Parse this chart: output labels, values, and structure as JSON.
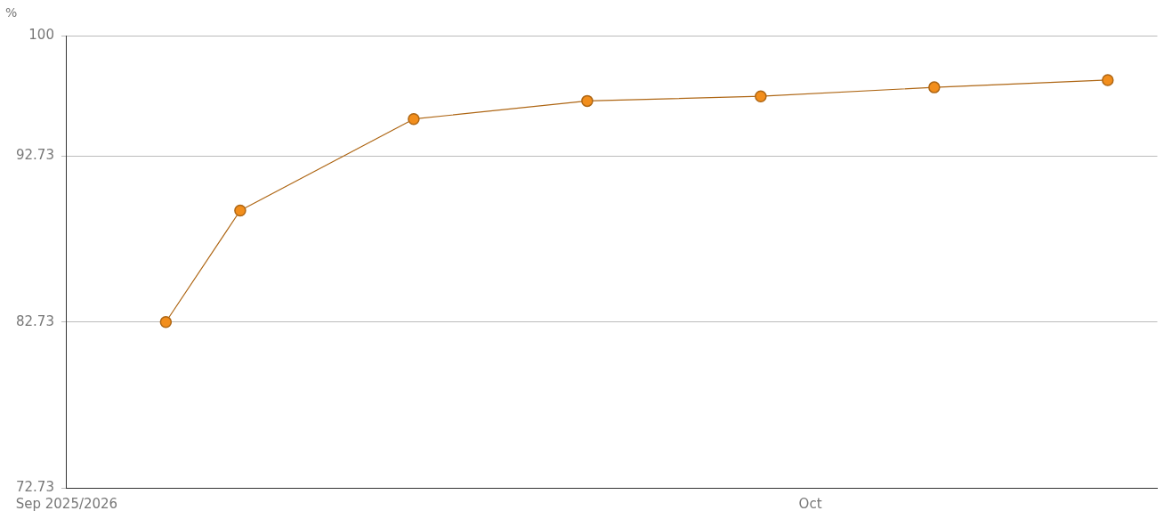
{
  "chart_data": {
    "type": "line",
    "ylabel": "%",
    "x": [
      "--09-05",
      "--09-08",
      "--09-15",
      "--09-22",
      "--09-29",
      "--10-06",
      "--10-13"
    ],
    "series": [
      {
        "color": "#f28e1c",
        "values": [
          82.73,
          89.45,
          94.97,
          96.06,
          96.34,
          96.88,
          97.32
        ]
      }
    ],
    "xlim": [
      "--09-01",
      "--10-15"
    ],
    "xticks": [
      {
        "value": "--09-01",
        "label": "Sep 2025/2026"
      },
      {
        "value": "--10-01",
        "label": "Oct"
      }
    ],
    "ylim": [
      72.73,
      100
    ],
    "yticks": [
      72.73,
      82.73,
      92.73,
      100
    ],
    "grid": "y",
    "legend": false,
    "marker": "circle",
    "line_style": "solid"
  }
}
